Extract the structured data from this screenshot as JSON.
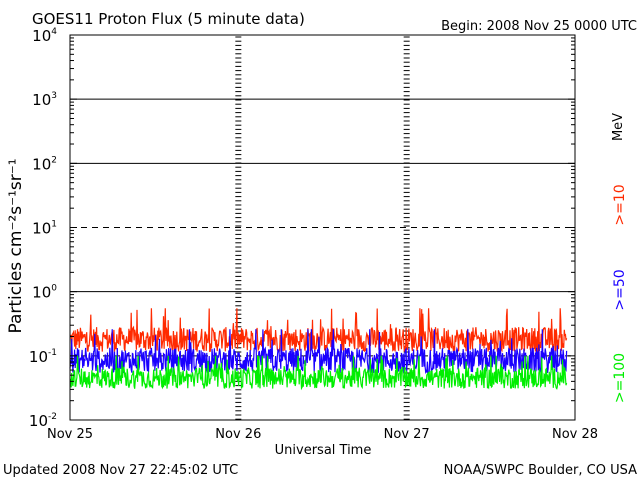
{
  "chart_data": {
    "type": "line",
    "title": "GOES11 Proton Flux (5 minute data)",
    "begin_label": "Begin: 2008 Nov 25 0000 UTC",
    "ylabel": "Particles cm⁻²s⁻¹sr⁻¹",
    "xlabel": "Universal Time",
    "unit_label": "MeV",
    "yscale": "log",
    "ylim": [
      0.01,
      10000
    ],
    "y_tick_labels": [
      {
        "value": 10000,
        "base": "10",
        "exp": "4"
      },
      {
        "value": 1000,
        "base": "10",
        "exp": "3"
      },
      {
        "value": 100,
        "base": "10",
        "exp": "2"
      },
      {
        "value": 10,
        "base": "10",
        "exp": "1"
      },
      {
        "value": 1,
        "base": "10",
        "exp": "0"
      },
      {
        "value": 0.1,
        "base": "10",
        "exp": "-1"
      },
      {
        "value": 0.01,
        "base": "10",
        "exp": "-2"
      }
    ],
    "x_categories": [
      "Nov 25",
      "Nov 26",
      "Nov 27",
      "Nov 28"
    ],
    "xlim_days": [
      0,
      3
    ],
    "series": [
      {
        "name": ">=10",
        "color": "#ff2a00",
        "typical": 0.18,
        "min": 0.11,
        "max": 0.55
      },
      {
        "name": ">=50",
        "color": "#1a00ff",
        "typical": 0.085,
        "min": 0.05,
        "max": 0.26
      },
      {
        "name": ">=100",
        "color": "#00ee00",
        "typical": 0.045,
        "min": 0.025,
        "max": 0.1
      }
    ]
  },
  "footer": {
    "updated": "Updated 2008 Nov 27 22:45:02 UTC",
    "credit": "NOAA/SWPC Boulder, CO USA"
  }
}
